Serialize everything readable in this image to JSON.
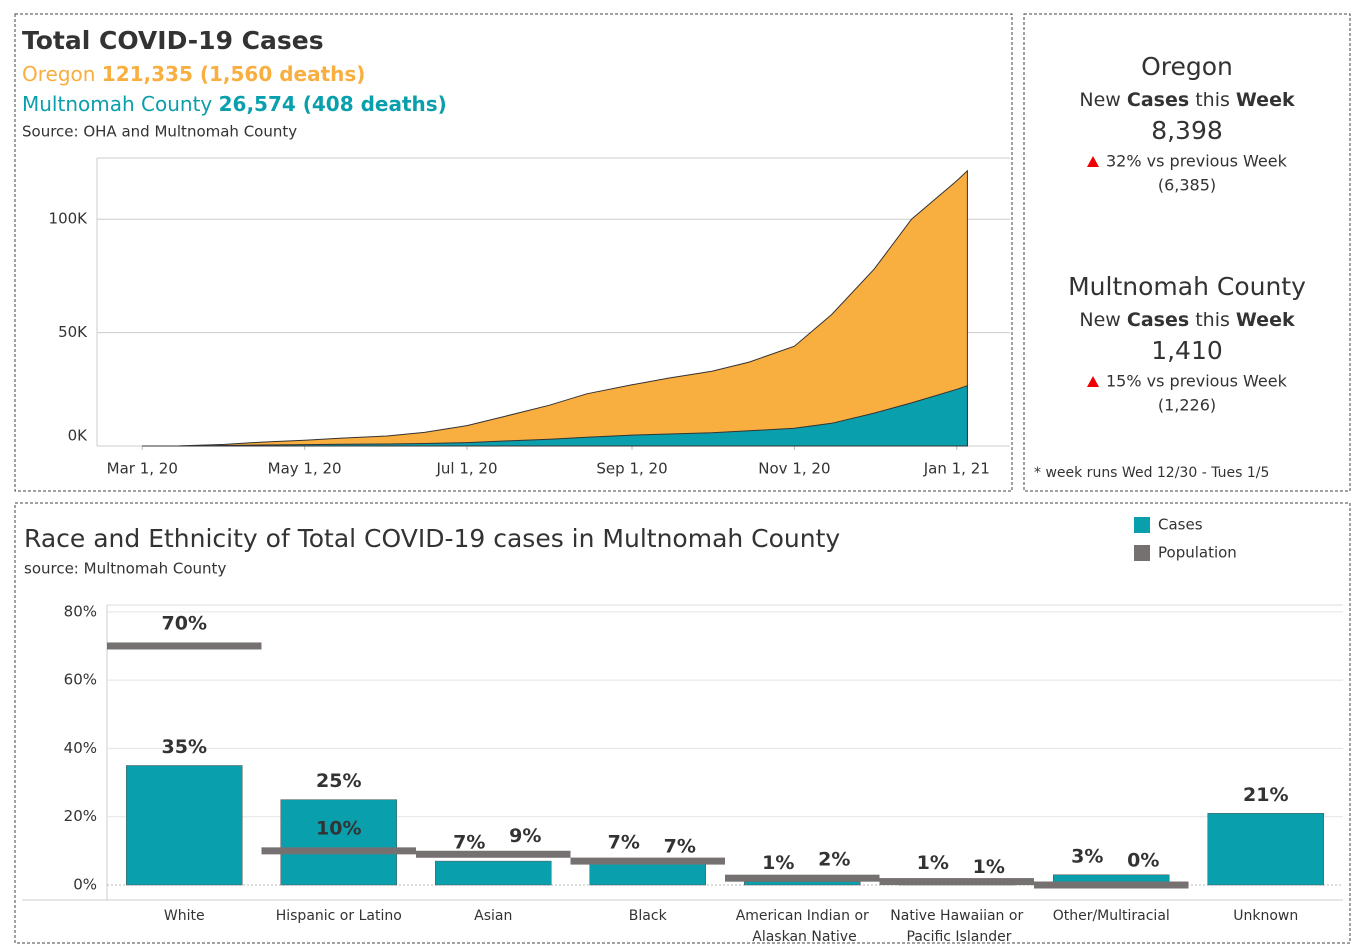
{
  "chart_data": [
    {
      "type": "area",
      "title": "Total COVID-19 Cases",
      "source": "Source: OHA and Multnomah County",
      "x": [
        "2020-03-01",
        "2020-03-15",
        "2020-04-01",
        "2020-04-15",
        "2020-05-01",
        "2020-05-15",
        "2020-06-01",
        "2020-06-15",
        "2020-07-01",
        "2020-07-15",
        "2020-08-01",
        "2020-08-15",
        "2020-09-01",
        "2020-09-15",
        "2020-10-01",
        "2020-10-15",
        "2020-11-01",
        "2020-11-15",
        "2020-12-01",
        "2020-12-15",
        "2021-01-01",
        "2021-01-05"
      ],
      "series": [
        {
          "name": "Oregon",
          "summary": "121,335 (1,560 deaths)",
          "color": "#f9ae40",
          "values": [
            0,
            40,
            700,
            1700,
            2500,
            3500,
            4400,
            6000,
            9000,
            13000,
            18000,
            23000,
            27000,
            30000,
            33000,
            37000,
            44000,
            58000,
            78000,
            100000,
            117000,
            121335
          ]
        },
        {
          "name": "Multnomah County",
          "summary": "26,574 (408 deaths)",
          "color": "#0a9fac",
          "values": [
            0,
            10,
            200,
            450,
            600,
            750,
            900,
            1100,
            1500,
            2200,
            3000,
            3900,
            4800,
            5300,
            5800,
            6700,
            7800,
            10000,
            14500,
            19000,
            25000,
            26574
          ]
        }
      ],
      "xlim": [
        "2020-02-13",
        "2021-01-21"
      ],
      "xticks": [
        {
          "value": "2020-03-01",
          "label": "Mar 1, 20"
        },
        {
          "value": "2020-05-01",
          "label": "May 1, 20"
        },
        {
          "value": "2020-07-01",
          "label": "Jul 1, 20"
        },
        {
          "value": "2020-09-01",
          "label": "Sep 1, 20"
        },
        {
          "value": "2020-11-01",
          "label": "Nov 1, 20"
        },
        {
          "value": "2021-01-01",
          "label": "Jan 1, 21"
        }
      ],
      "ylim": [
        0,
        127000
      ],
      "yticks": [
        {
          "value": 0,
          "label": "0K"
        },
        {
          "value": 50000,
          "label": "50K"
        },
        {
          "value": 100000,
          "label": "100K"
        }
      ],
      "grid": true
    },
    {
      "type": "bar",
      "title": "Race and Ethnicity of Total COVID-19 cases in Multnomah County",
      "source": "source: Multnomah County",
      "categories": [
        "White",
        "Hispanic or Latino",
        "Asian",
        "Black",
        "American Indian or Alaskan Native",
        "Native Hawaiian or Pacific Islander",
        "Other/Multiracial",
        "Unknown"
      ],
      "series": [
        {
          "name": "Cases",
          "color": "#0a9fac",
          "values": [
            35,
            25,
            7,
            7,
            1,
            1,
            3,
            21
          ],
          "value_labels": [
            "35%",
            "25%",
            "7%",
            "7%",
            "1%",
            "1%",
            "3%",
            "21%"
          ]
        },
        {
          "name": "Population",
          "color": "#767171",
          "values": [
            70,
            10,
            9,
            7,
            2,
            1,
            0,
            null
          ],
          "value_labels": [
            "70%",
            "10%",
            "9%",
            "7%",
            "2%",
            "1%",
            "0%",
            null
          ]
        }
      ],
      "ylim": [
        0,
        82
      ],
      "yticks": [
        {
          "value": 0,
          "label": "0%"
        },
        {
          "value": 20,
          "label": "20%"
        },
        {
          "value": 40,
          "label": "40%"
        },
        {
          "value": 60,
          "label": "60%"
        },
        {
          "value": 80,
          "label": "80%"
        }
      ],
      "grid": true,
      "legend": "top-right"
    }
  ],
  "panel": {
    "heading": [
      "New ",
      "Cases",
      " this ",
      "Week"
    ],
    "items": [
      {
        "name": "Oregon",
        "color": "#f9ae40",
        "value": "8,398",
        "change": "32% vs previous Week",
        "previous": "(6,385)"
      },
      {
        "name": "Multnomah County",
        "color": "#1aa3b2",
        "value": "1,410",
        "change": "15% vs previous Week",
        "previous": "(1,226)"
      }
    ],
    "footnote": "* week runs Wed 12/30 - Tues 1/5"
  }
}
